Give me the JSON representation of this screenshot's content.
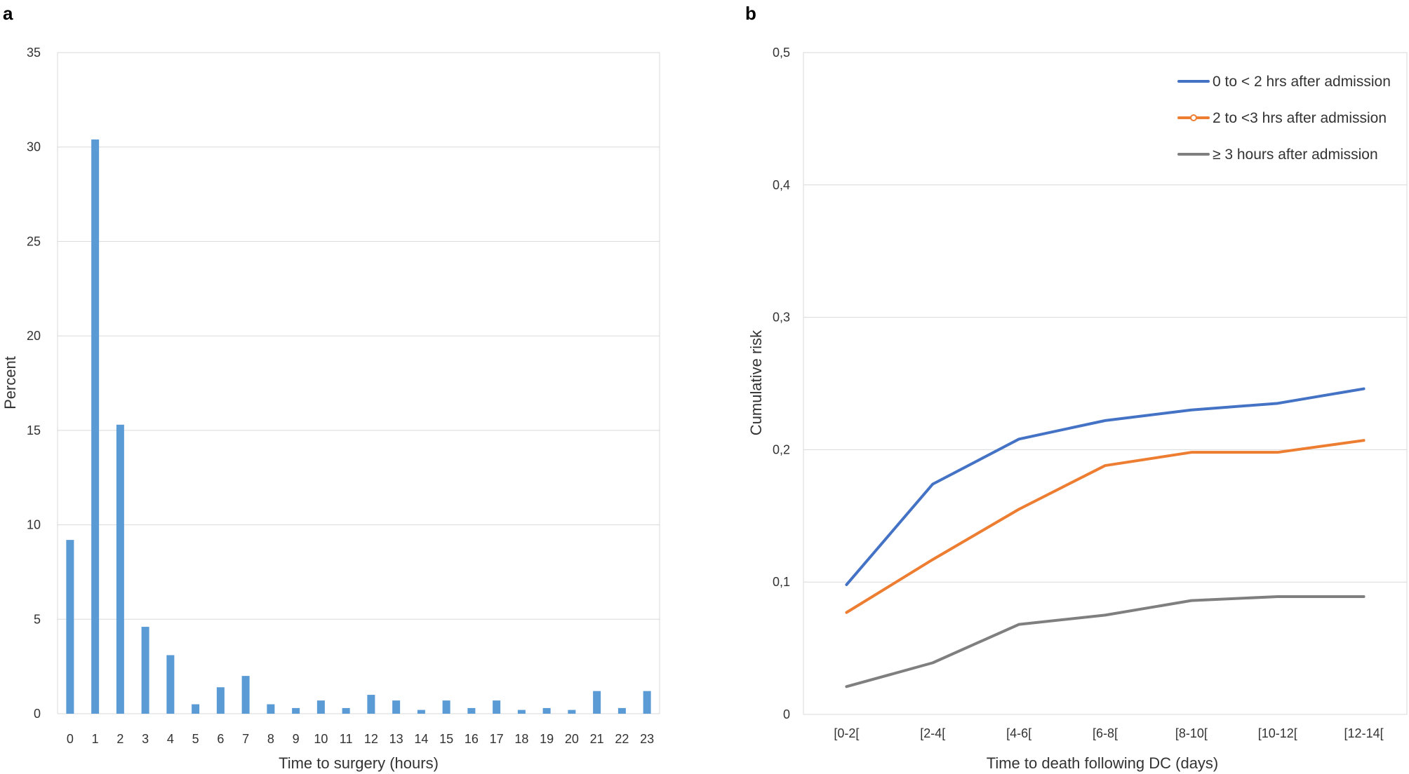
{
  "chart_data": [
    {
      "panel": "a",
      "type": "bar",
      "xlabel": "Time to surgery (hours)",
      "ylabel": "Percent",
      "categories": [
        "0",
        "1",
        "2",
        "3",
        "4",
        "5",
        "6",
        "7",
        "8",
        "9",
        "10",
        "11",
        "12",
        "13",
        "14",
        "15",
        "16",
        "17",
        "18",
        "19",
        "20",
        "21",
        "22",
        "23"
      ],
      "values": [
        9.2,
        30.4,
        15.3,
        4.6,
        3.1,
        0.5,
        1.4,
        2.0,
        0.5,
        0.3,
        0.7,
        0.3,
        1.0,
        0.7,
        0.2,
        0.7,
        0.3,
        0.7,
        0.2,
        0.3,
        0.2,
        1.2,
        0.3,
        1.2
      ],
      "ylim": [
        0,
        35
      ],
      "yticks": [
        "0",
        "5",
        "10",
        "15",
        "20",
        "25",
        "30",
        "35"
      ],
      "grid": true,
      "color": "#5b9bd5"
    },
    {
      "panel": "b",
      "type": "line",
      "xlabel": "Time to death following DC (days)",
      "ylabel": "Cumulative risk",
      "categories": [
        "[0-2[",
        "[2-4[",
        "[4-6[",
        "[6-8[",
        "[8-10[",
        "[10-12[",
        "[12-14["
      ],
      "ylim": [
        0,
        0.5
      ],
      "yticks": [
        "0",
        "0,1",
        "0,2",
        "0,3",
        "0,4",
        "0,5"
      ],
      "grid": true,
      "legend_position": "top-right",
      "series": [
        {
          "name": "0 to < 2 hrs after admission",
          "color": "#4472c4",
          "values": [
            0.098,
            0.174,
            0.208,
            0.222,
            0.23,
            0.235,
            0.246
          ]
        },
        {
          "name": "2 to <3 hrs after admission",
          "color": "#ed7d31",
          "values": [
            0.077,
            0.117,
            0.155,
            0.188,
            0.198,
            0.198,
            0.207
          ]
        },
        {
          "name": "≥ 3 hours after admission",
          "color": "#7f7f7f",
          "values": [
            0.021,
            0.039,
            0.068,
            0.075,
            0.086,
            0.089,
            0.089
          ]
        }
      ]
    }
  ]
}
